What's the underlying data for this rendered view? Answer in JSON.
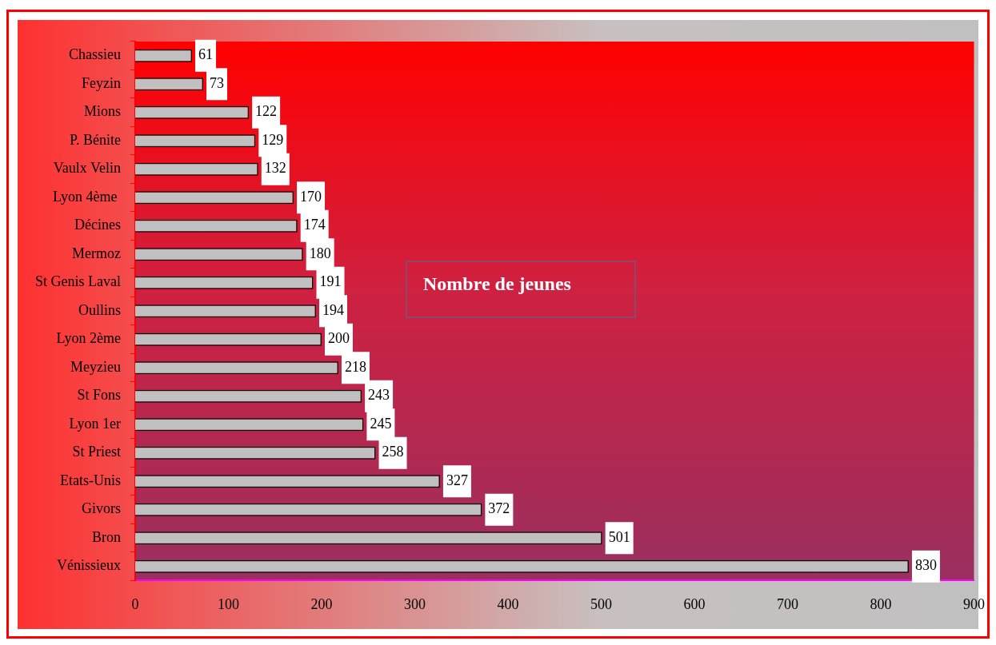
{
  "chart_data": {
    "type": "bar",
    "orientation": "horizontal",
    "title": "Nombre de jeunes",
    "categories": [
      "Chassieu",
      "Feyzin",
      "Mions",
      "P. Bénite",
      "Vaulx Velin",
      "Lyon 4ème ",
      "Décines",
      "Mermoz",
      "St Genis Laval",
      "Oullins",
      "Lyon 2ème",
      "Meyzieu",
      "St Fons",
      "Lyon 1er",
      "St Priest",
      "Etats-Unis",
      "Givors",
      "Bron",
      "Vénissieux"
    ],
    "values": [
      61,
      73,
      122,
      129,
      132,
      170,
      174,
      180,
      191,
      194,
      200,
      218,
      243,
      245,
      258,
      327,
      372,
      501,
      830
    ],
    "color": "#c0c0c0",
    "xlim": [
      0,
      900
    ],
    "xticks": [
      0,
      100,
      200,
      300,
      400,
      500,
      600,
      700,
      800,
      900
    ],
    "grid": false,
    "legend": false,
    "data_labels": true
  }
}
